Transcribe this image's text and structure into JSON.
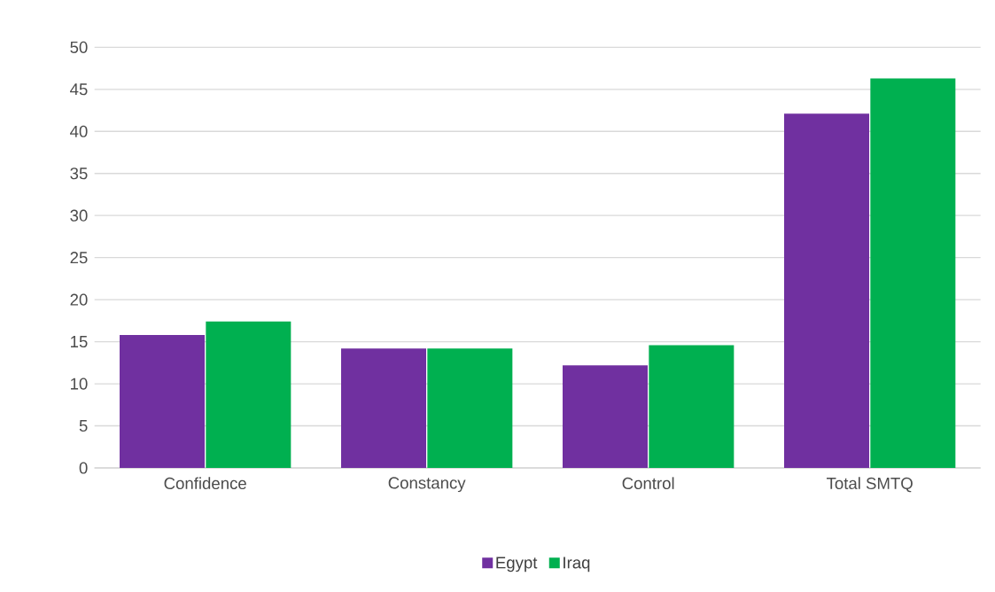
{
  "chart_data": {
    "type": "bar",
    "categories": [
      "Confidence",
      "Constancy",
      "Control",
      "Total SMTQ"
    ],
    "series": [
      {
        "name": "Egypt",
        "color": "#7030a0",
        "values": [
          15.8,
          14.2,
          12.2,
          42.1
        ]
      },
      {
        "name": "Iraq",
        "color": "#00b050",
        "values": [
          17.4,
          14.2,
          14.6,
          46.3
        ]
      }
    ],
    "ylim": [
      0,
      50
    ],
    "yticks": [
      0,
      5,
      10,
      15,
      20,
      25,
      30,
      35,
      40,
      45,
      50
    ],
    "grid": "y",
    "legend": "bottom"
  }
}
